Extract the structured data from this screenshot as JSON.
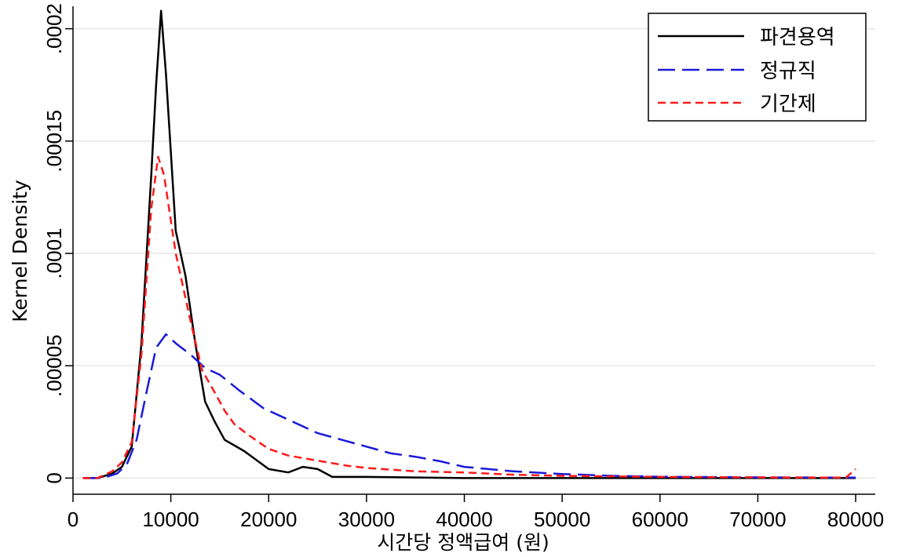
{
  "chart_data": {
    "type": "line",
    "xlabel": "시간당 정액급여 (원)",
    "ylabel": "Kernel Density",
    "xlim": [
      0,
      82000
    ],
    "ylim": [
      -7.2e-06,
      0.00021
    ],
    "x_ticks": [
      0,
      10000,
      20000,
      30000,
      40000,
      50000,
      60000,
      70000,
      80000
    ],
    "x_tick_labels": [
      "0",
      "10000",
      "20000",
      "30000",
      "40000",
      "50000",
      "60000",
      "70000",
      "80000"
    ],
    "y_ticks": [
      0,
      5e-05,
      0.0001,
      0.00015,
      0.0002
    ],
    "y_tick_labels": [
      "0",
      ".00005",
      ".0001",
      ".00015",
      ".0002"
    ],
    "grid": true,
    "legend_position": "top-right",
    "series": [
      {
        "name": "파견용역",
        "color": "#000000",
        "dash": "solid",
        "points": [
          [
            1000,
            0
          ],
          [
            2500,
            0
          ],
          [
            4000,
            2e-06
          ],
          [
            5000,
            5e-06
          ],
          [
            6000,
            1.4e-05
          ],
          [
            7000,
            6e-05
          ],
          [
            8000,
            0.000135
          ],
          [
            8500,
            0.000175
          ],
          [
            9000,
            0.000208
          ],
          [
            9500,
            0.00018
          ],
          [
            10500,
            0.00011
          ],
          [
            11500,
            9e-05
          ],
          [
            12500,
            6e-05
          ],
          [
            13500,
            3.4e-05
          ],
          [
            14500,
            2.5e-05
          ],
          [
            15500,
            1.7e-05
          ],
          [
            17500,
            1.2e-05
          ],
          [
            20000,
            4e-06
          ],
          [
            22000,
            2.5e-06
          ],
          [
            23500,
            5e-06
          ],
          [
            25000,
            4e-06
          ],
          [
            26500,
            5e-07
          ],
          [
            30000,
            5e-07
          ],
          [
            40000,
            0
          ],
          [
            50000,
            0
          ],
          [
            60000,
            0
          ],
          [
            70000,
            0
          ],
          [
            80000,
            0
          ]
        ]
      },
      {
        "name": "정규직",
        "color": "#1a1ad9",
        "dash": "long",
        "points": [
          [
            1000,
            0
          ],
          [
            3000,
            0
          ],
          [
            4500,
            2e-06
          ],
          [
            5500,
            6e-06
          ],
          [
            6500,
            1.7e-05
          ],
          [
            7500,
            3.8e-05
          ],
          [
            8500,
            5.8e-05
          ],
          [
            9500,
            6.4e-05
          ],
          [
            10500,
            6e-05
          ],
          [
            12000,
            5.5e-05
          ],
          [
            13500,
            4.9e-05
          ],
          [
            15000,
            4.6e-05
          ],
          [
            17000,
            3.9e-05
          ],
          [
            19500,
            3.1e-05
          ],
          [
            22000,
            2.6e-05
          ],
          [
            25000,
            2e-05
          ],
          [
            27500,
            1.7e-05
          ],
          [
            30000,
            1.4e-05
          ],
          [
            32500,
            1.1e-05
          ],
          [
            35000,
            9.5e-06
          ],
          [
            37500,
            7.5e-06
          ],
          [
            40000,
            5e-06
          ],
          [
            45000,
            3e-06
          ],
          [
            50000,
            1.8e-06
          ],
          [
            55000,
            1e-06
          ],
          [
            60000,
            6e-07
          ],
          [
            70000,
            3e-07
          ],
          [
            80000,
            2e-07
          ]
        ]
      },
      {
        "name": "기간제",
        "color": "#ff1a1a",
        "dash": "short",
        "points": [
          [
            1000,
            0
          ],
          [
            2500,
            0
          ],
          [
            4000,
            3e-06
          ],
          [
            5000,
            7e-06
          ],
          [
            6000,
            1.6e-05
          ],
          [
            7000,
            5.5e-05
          ],
          [
            8000,
            0.00012
          ],
          [
            8700,
            0.000143
          ],
          [
            9300,
            0.000135
          ],
          [
            10500,
            0.0001
          ],
          [
            12000,
            7e-05
          ],
          [
            13200,
            4.8e-05
          ],
          [
            14500,
            3.8e-05
          ],
          [
            15500,
            3e-05
          ],
          [
            16500,
            2.4e-05
          ],
          [
            18000,
            1.9e-05
          ],
          [
            20000,
            1.3e-05
          ],
          [
            22000,
            1e-05
          ],
          [
            24000,
            8.5e-06
          ],
          [
            26000,
            7e-06
          ],
          [
            28000,
            5.5e-06
          ],
          [
            30000,
            4.5e-06
          ],
          [
            35000,
            3e-06
          ],
          [
            40000,
            2.5e-06
          ],
          [
            45000,
            1.5e-06
          ],
          [
            50000,
            1e-06
          ],
          [
            60000,
            5e-07
          ],
          [
            70000,
            3e-07
          ],
          [
            79000,
            2e-07
          ],
          [
            80000,
            4e-06
          ]
        ]
      }
    ]
  }
}
